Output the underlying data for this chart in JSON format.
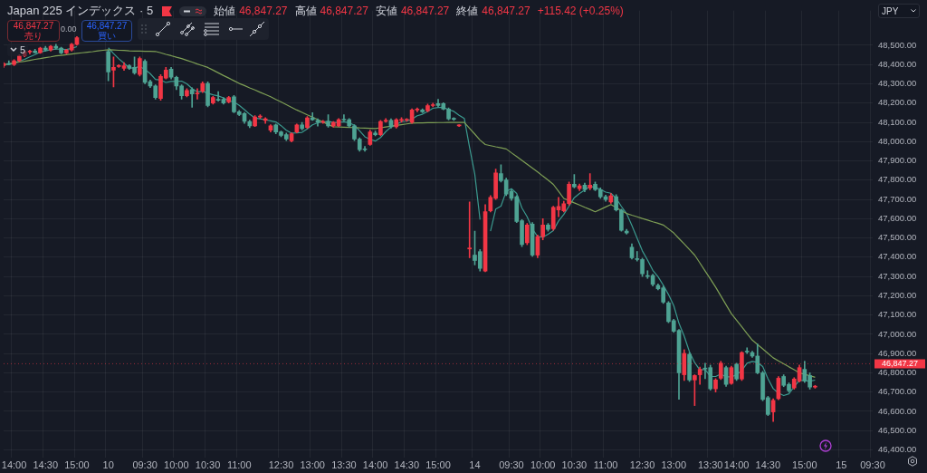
{
  "chart_data": {
    "type": "candlestick",
    "title": "Japan 225 インデックス · 5",
    "categories": [
      null,
      null,
      "14:00",
      null,
      null,
      null,
      null,
      null,
      "14:30",
      null,
      null,
      null,
      null,
      null,
      "15:00",
      null,
      null,
      null,
      null,
      null,
      "10",
      null,
      null,
      null,
      null,
      null,
      null,
      "09:30",
      null,
      null,
      null,
      null,
      null,
      "10:00",
      null,
      null,
      null,
      null,
      null,
      "10:30",
      null,
      null,
      null,
      null,
      null,
      "11:00",
      null,
      null,
      null,
      null,
      null,
      null,
      null,
      "12:30",
      null,
      null,
      null,
      null,
      null,
      "13:00",
      null,
      null,
      null,
      null,
      null,
      "13:30",
      null,
      null,
      null,
      null,
      null,
      "14:00",
      null,
      null,
      null,
      null,
      null,
      "14:30",
      null,
      null,
      null,
      null,
      null,
      "15:00",
      null,
      null,
      null,
      null,
      null,
      null,
      "14",
      null,
      null,
      null,
      null,
      null,
      null,
      "09:30",
      null,
      null,
      null,
      null,
      null,
      "10:00",
      null,
      null,
      null,
      null,
      null,
      "10:30",
      null,
      null,
      null,
      null,
      null,
      "11:00",
      null,
      null,
      null,
      null,
      null,
      null,
      "12:30",
      null,
      null,
      null,
      null,
      null,
      "13:00",
      null,
      null,
      null,
      null,
      null,
      null,
      "13:30",
      null,
      null,
      null,
      null,
      "14:00",
      null,
      null,
      null,
      null,
      null,
      "14:30",
      null,
      null,
      null,
      null,
      null,
      null,
      "15:00",
      null,
      null,
      null,
      null,
      null,
      null,
      "15",
      null,
      null,
      null,
      null,
      null,
      "09:30"
    ],
    "ohlc": [
      [
        48395,
        48410,
        48385,
        48405
      ],
      [
        48405,
        48420,
        48398,
        48400
      ],
      [
        48400,
        48425,
        48395,
        48420
      ],
      [
        48420,
        48450,
        48415,
        48445
      ],
      [
        48445,
        48470,
        48440,
        48465
      ],
      [
        48465,
        48475,
        48455,
        48470
      ],
      [
        48470,
        48480,
        48460,
        48462
      ],
      [
        48462,
        48490,
        48458,
        48485
      ],
      [
        48485,
        48495,
        48470,
        48475
      ],
      [
        48475,
        48500,
        48470,
        48495
      ],
      [
        48495,
        48505,
        48480,
        48485
      ],
      [
        48485,
        48490,
        48455,
        48460
      ],
      [
        48460,
        48480,
        48455,
        48475
      ],
      [
        48475,
        48510,
        48470,
        48505
      ],
      [
        48505,
        48545,
        48500,
        48540
      ],
      null,
      null,
      null,
      null,
      null,
      [
        48468,
        48475,
        48316,
        48362
      ],
      [
        48371,
        48440,
        48284,
        48385
      ],
      [
        48390,
        48400,
        48385,
        48394
      ],
      [
        48380,
        48410,
        48370,
        48394
      ],
      [
        48394,
        48400,
        48375,
        48380
      ],
      [
        48385,
        48440,
        48350,
        48357
      ],
      [
        48348,
        48440,
        48340,
        48431
      ],
      [
        48417,
        48425,
        48300,
        48307
      ],
      [
        48311,
        48320,
        48280,
        48289
      ],
      [
        48289,
        48295,
        48220,
        48229
      ],
      [
        48224,
        48348,
        48215,
        48339
      ],
      [
        48330,
        48385,
        48325,
        48371
      ],
      [
        48376,
        48385,
        48325,
        48334
      ],
      [
        48334,
        48340,
        48270,
        48289
      ],
      [
        48289,
        48295,
        48220,
        48238
      ],
      [
        48238,
        48275,
        48232,
        48266
      ],
      [
        48270,
        48280,
        48178,
        48247
      ],
      [
        48247,
        48275,
        48220,
        48252
      ],
      [
        48261,
        48310,
        48255,
        48302
      ],
      [
        48302,
        48310,
        48180,
        48187
      ],
      [
        48201,
        48235,
        48195,
        48229
      ],
      [
        48220,
        48260,
        48210,
        48215
      ],
      [
        48220,
        48228,
        48195,
        48201
      ],
      [
        48206,
        48235,
        48200,
        48229
      ],
      [
        48233,
        48240,
        48150,
        48155
      ],
      [
        48155,
        48162,
        48135,
        48141
      ],
      [
        48146,
        48152,
        48095,
        48105
      ],
      [
        48105,
        48112,
        48072,
        48082
      ],
      [
        48082,
        48135,
        48078,
        48128
      ],
      [
        48128,
        48140,
        48120,
        48132
      ],
      [
        48110,
        48125,
        48095,
        48118
      ],
      [
        48059,
        48088,
        48050,
        48082
      ],
      [
        48087,
        48092,
        48040,
        48050
      ],
      [
        48050,
        48055,
        48025,
        48032
      ],
      [
        48036,
        48045,
        48005,
        48013
      ],
      [
        48004,
        48046,
        47998,
        48041
      ],
      [
        48050,
        48092,
        48045,
        48087
      ],
      [
        48087,
        48100,
        48060,
        48068
      ],
      [
        48073,
        48130,
        48068,
        48123
      ],
      [
        48123,
        48150,
        48110,
        48114
      ],
      [
        48110,
        48118,
        48080,
        48100
      ],
      [
        48100,
        48110,
        48095,
        48105
      ],
      [
        48105,
        48140,
        48075,
        48082
      ],
      [
        48082,
        48105,
        48075,
        48100
      ],
      [
        48082,
        48120,
        48078,
        48114
      ],
      [
        48114,
        48140,
        48108,
        48112
      ],
      [
        48114,
        48120,
        48075,
        48082
      ],
      [
        48082,
        48088,
        48005,
        48013
      ],
      [
        48013,
        48020,
        47950,
        47958
      ],
      [
        47960,
        47975,
        47950,
        47958
      ],
      [
        47985,
        48060,
        47980,
        48050
      ],
      [
        48045,
        48055,
        48030,
        48036
      ],
      [
        48036,
        48110,
        48030,
        48105
      ],
      [
        48105,
        48120,
        48100,
        48110
      ],
      [
        48110,
        48118,
        48070,
        48077
      ],
      [
        48077,
        48120,
        48070,
        48114
      ],
      [
        48110,
        48125,
        48100,
        48112
      ],
      [
        48112,
        48120,
        48105,
        48115
      ],
      [
        48100,
        48170,
        48095,
        48164
      ],
      [
        48164,
        48175,
        48155,
        48166
      ],
      [
        48164,
        48170,
        48150,
        48155
      ],
      [
        48160,
        48195,
        48155,
        48187
      ],
      [
        48187,
        48200,
        48180,
        48192
      ],
      [
        48197,
        48220,
        48180,
        48187
      ],
      [
        48197,
        48202,
        48165,
        48169
      ],
      [
        48169,
        48175,
        48112,
        48118
      ],
      [
        48118,
        48125,
        48110,
        48116
      ],
      [
        48082,
        48088,
        48078,
        48085
      ],
      null,
      [
        47443,
        47687,
        47397,
        47448
      ],
      [
        47411,
        47535,
        47360,
        47383
      ],
      [
        47429,
        47440,
        47328,
        47342
      ],
      [
        47328,
        47673,
        47325,
        47636
      ],
      [
        47641,
        47720,
        47635,
        47710
      ],
      [
        47705,
        47857,
        47700,
        47838
      ],
      [
        47834,
        47880,
        47790,
        47797
      ],
      [
        47801,
        47810,
        47720,
        47728
      ],
      [
        47742,
        47750,
        47695,
        47705
      ],
      [
        47714,
        47720,
        47580,
        47586
      ],
      [
        47590,
        47595,
        47455,
        47466
      ],
      [
        47475,
        47575,
        47465,
        47567
      ],
      [
        47572,
        47580,
        47405,
        47411
      ],
      [
        47411,
        47515,
        47397,
        47507
      ],
      [
        47507,
        47600,
        47490,
        47567
      ],
      [
        47567,
        47575,
        47535,
        47544
      ],
      [
        47548,
        47665,
        47540,
        47659
      ],
      [
        47645,
        47710,
        47610,
        47664
      ],
      [
        47641,
        47690,
        47635,
        47678
      ],
      [
        47678,
        47790,
        47670,
        47779
      ],
      [
        47779,
        47829,
        47760,
        47765
      ],
      [
        47756,
        47780,
        47745,
        47770
      ],
      [
        47774,
        47785,
        47740,
        47751
      ],
      [
        47760,
        47834,
        47750,
        47774
      ],
      [
        47779,
        47790,
        47745,
        47751
      ],
      [
        47751,
        47760,
        47705,
        47714
      ],
      [
        47714,
        47722,
        47690,
        47700
      ],
      [
        47687,
        47730,
        47680,
        47719
      ],
      [
        47714,
        47725,
        47640,
        47645
      ],
      [
        47645,
        47650,
        47535,
        47540
      ],
      [
        47535,
        47545,
        47520,
        47526
      ],
      [
        47452,
        47470,
        47390,
        47397
      ],
      [
        47390,
        47430,
        47380,
        47388
      ],
      [
        47388,
        47395,
        47300,
        47314
      ],
      [
        47302,
        47330,
        47290,
        47300
      ],
      [
        47305,
        47312,
        47250,
        47259
      ],
      [
        47254,
        47262,
        47230,
        47236
      ],
      [
        47241,
        47250,
        47160,
        47167
      ],
      [
        47163,
        47170,
        47060,
        47066
      ],
      [
        47071,
        47078,
        47010,
        47016
      ],
      [
        47020,
        47025,
        46662,
        46800
      ],
      [
        46790,
        46920,
        46760,
        46901
      ],
      [
        46896,
        46905,
        46755,
        46763
      ],
      [
        46763,
        46790,
        46630,
        46786
      ],
      [
        46790,
        46830,
        46740,
        46818
      ],
      [
        46823,
        46850,
        46770,
        46820
      ],
      [
        46827,
        46840,
        46710,
        46717
      ],
      [
        46717,
        46770,
        46700,
        46763
      ],
      [
        46772,
        46860,
        46765,
        46850
      ],
      [
        46827,
        46835,
        46730,
        46740
      ],
      [
        46745,
        46835,
        46740,
        46827
      ],
      [
        46845,
        46850,
        46760,
        46768
      ],
      [
        46768,
        46910,
        46760,
        46905
      ],
      [
        46910,
        46930,
        46900,
        46908
      ],
      [
        46905,
        46912,
        46880,
        46887
      ],
      [
        46887,
        46950,
        46795,
        46800
      ],
      [
        46800,
        46808,
        46655,
        46662
      ],
      [
        46671,
        46678,
        46578,
        46584
      ],
      [
        46597,
        46665,
        46547,
        46657
      ],
      [
        46666,
        46780,
        46660,
        46772
      ],
      [
        46781,
        46790,
        46728,
        46735
      ],
      [
        46740,
        46748,
        46700,
        46708
      ],
      [
        46722,
        46775,
        46715,
        46768
      ],
      [
        46758,
        46840,
        46752,
        46827
      ],
      [
        46818,
        46860,
        46750,
        46758
      ],
      [
        46786,
        46800,
        46715,
        46726
      ],
      [
        46726,
        46735,
        46720,
        46730
      ],
      null,
      null,
      null,
      null,
      null,
      null,
      null,
      null,
      null,
      null,
      null
    ],
    "colors": [
      "#f23645",
      "#4ea393",
      "#f23645",
      "#f23645",
      "#f23645",
      "#f23645",
      "#4ea393",
      "#f23645",
      "#4ea393",
      "#f23645",
      "#4ea393",
      "#4ea393",
      "#f23645",
      "#f23645",
      "#f23645",
      null,
      null,
      null,
      null,
      null,
      "#4ea393",
      "#f23645",
      "#f23645",
      "#f23645",
      "#4ea393",
      "#4ea393",
      "#f23645",
      "#4ea393",
      "#4ea393",
      "#4ea393",
      "#f23645",
      "#f23645",
      "#4ea393",
      "#4ea393",
      "#4ea393",
      "#f23645",
      "#4ea393",
      "#f23645",
      "#f23645",
      "#4ea393",
      "#f23645",
      "#4ea393",
      "#4ea393",
      "#f23645",
      "#4ea393",
      "#4ea393",
      "#4ea393",
      "#4ea393",
      "#f23645",
      "#f23645",
      "#f23645",
      "#f23645",
      "#4ea393",
      "#4ea393",
      "#4ea393",
      "#f23645",
      "#f23645",
      "#4ea393",
      "#f23645",
      "#4ea393",
      "#4ea393",
      "#f23645",
      "#4ea393",
      "#f23645",
      "#f23645",
      "#4ea393",
      "#4ea393",
      "#4ea393",
      "#4ea393",
      "#4ea393",
      "#f23645",
      "#4ea393",
      "#f23645",
      "#f23645",
      "#4ea393",
      "#f23645",
      "#f23645",
      "#f23645",
      "#f23645",
      "#f23645",
      "#4ea393",
      "#f23645",
      "#f23645",
      "#4ea393",
      "#4ea393",
      "#4ea393",
      "#4ea393",
      "#f23645",
      null,
      "#f23645",
      "#4ea393",
      "#4ea393",
      "#f23645",
      "#f23645",
      "#f23645",
      "#4ea393",
      "#4ea393",
      "#4ea393",
      "#4ea393",
      "#4ea393",
      "#f23645",
      "#4ea393",
      "#f23645",
      "#f23645",
      "#4ea393",
      "#f23645",
      "#f23645",
      "#f23645",
      "#f23645",
      "#4ea393",
      "#f23645",
      "#4ea393",
      "#f23645",
      "#4ea393",
      "#4ea393",
      "#4ea393",
      "#f23645",
      "#4ea393",
      "#4ea393",
      "#4ea393",
      "#4ea393",
      "#4ea393",
      "#4ea393",
      "#4ea393",
      "#4ea393",
      "#4ea393",
      "#4ea393",
      "#4ea393",
      "#4ea393",
      "#4ea393",
      "#f23645",
      "#4ea393",
      "#f23645",
      "#f23645",
      "#4ea393",
      "#4ea393",
      "#f23645",
      "#f23645",
      "#4ea393",
      "#f23645",
      "#4ea393",
      "#f23645",
      "#4ea393",
      "#4ea393",
      "#4ea393",
      "#4ea393",
      "#4ea393",
      "#f23645",
      "#f23645",
      "#4ea393",
      "#4ea393",
      "#f23645",
      "#f23645",
      "#4ea393",
      "#4ea393",
      "#f23645",
      null,
      null,
      null,
      null,
      null,
      null,
      null,
      null,
      null,
      null,
      null
    ],
    "series": [
      {
        "type": "line",
        "color": "#7e9f55",
        "values": [
          48399,
          48404,
          48408,
          48413,
          48417,
          48422,
          48427,
          48431,
          48436,
          48440,
          48445,
          48448,
          48451,
          48455,
          48458,
          48461,
          48464,
          48467,
          48471,
          48474,
          48477,
          48476,
          48474,
          48473,
          48471,
          48470,
          48470,
          48469,
          48469,
          48468,
          48461,
          48453,
          48446,
          48438,
          48431,
          48422,
          48413,
          48403,
          48394,
          48385,
          48371,
          48357,
          48343,
          48330,
          48316,
          48302,
          48291,
          48279,
          48268,
          48256,
          48245,
          48233,
          48219,
          48206,
          48192,
          48178,
          48164,
          48152,
          48139,
          48127,
          48114,
          48102,
          48089,
          48077,
          48076,
          48075,
          48074,
          48073,
          48071,
          48070,
          48069,
          48068,
          48072,
          48076,
          48080,
          48084,
          48088,
          48092,
          48096,
          48097,
          48097,
          48098,
          48098,
          48099,
          48099,
          48100,
          48100,
          48100,
          48100,
          48069,
          48039,
          48008,
          47985,
          47979,
          47973,
          47968,
          47962,
          47942,
          47923,
          47903,
          47883,
          47863,
          47843,
          47821,
          47800,
          47778,
          47742,
          47705,
          47694,
          47682,
          47671,
          47659,
          47648,
          47636,
          47648,
          47661,
          47673,
          47658,
          47642,
          47627,
          47618,
          47610,
          47601,
          47593,
          47584,
          47576,
          47567,
          47547,
          47526,
          47497,
          47469,
          47440,
          47411,
          47370,
          47328,
          47287,
          47245,
          47199,
          47153,
          47107,
          47073,
          47039,
          47004,
          46970,
          46947,
          46924,
          46901,
          46878,
          46862,
          46847,
          46831,
          46816,
          46800,
          46792,
          46785,
          46777,
          null,
          null,
          null,
          null,
          null,
          null,
          null,
          null,
          null,
          null,
          null
        ]
      },
      {
        "type": "line",
        "color": "#3b9a8f",
        "values": [
          48400,
          48402,
          48408,
          48418,
          48427,
          48440,
          48452,
          48465,
          48471,
          48477,
          48480,
          48480,
          48478,
          48484,
          48493,
          null,
          null,
          null,
          null,
          null,
          48487,
          48457,
          48430,
          48407,
          48383,
          48382,
          48391,
          48374,
          48353,
          48323,
          48319,
          48307,
          48312,
          48312,
          48314,
          48300,
          48275,
          48258,
          48261,
          48251,
          48243,
          48237,
          48227,
          48212,
          48206,
          48188,
          48166,
          48142,
          48122,
          48118,
          48113,
          48108,
          48102,
          48083,
          48059,
          48044,
          48045,
          48048,
          48066,
          48087,
          48098,
          48102,
          48105,
          48100,
          48100,
          48103,
          48098,
          48085,
          48056,
          48025,
          48012,
          48003,
          48021,
          48052,
          48076,
          48088,
          48104,
          48106,
          48116,
          48134,
          48142,
          48157,
          48173,
          48177,
          48178,
          48166,
          48157,
          48137,
          48120,
          47970,
          47830,
          47595,
          null,
          47535,
          47650,
          47665,
          47742,
          47756,
          47731,
          47656,
          47610,
          47547,
          47507,
          47504,
          47519,
          47538,
          47588,
          47622,
          47665,
          47709,
          47731,
          47749,
          47768,
          47762,
          47752,
          47738,
          47732,
          47706,
          47664,
          47626,
          47565,
          47499,
          47433,
          47385,
          47332,
          47299,
          47255,
          47206,
          47149,
          47057,
          46990,
          46909,
          46853,
          46814,
          46818,
          46781,
          46781,
          46794,
          46779,
          46779,
          46790,
          46812,
          46850,
          46859,
          46854,
          46833,
          46769,
          46718,
          46695,
          46682,
          46691,
          46728,
          46762,
          46759,
          46757,
          46762,
          null,
          null,
          null,
          null,
          null,
          null,
          null,
          null,
          null,
          null,
          null
        ]
      }
    ],
    "ylim": [
      46360,
      48680
    ],
    "yticks": [
      {
        "value": 46400,
        "label": "46,400.00"
      },
      {
        "value": 46500,
        "label": "46,500.00"
      },
      {
        "value": 46600,
        "label": "46,600.00"
      },
      {
        "value": 46700,
        "label": "46,700.00"
      },
      {
        "value": 46800,
        "label": "46,800.00"
      },
      {
        "value": 46900,
        "label": "46,900.00"
      },
      {
        "value": 47000,
        "label": "47,000.00"
      },
      {
        "value": 47100,
        "label": "47,100.00"
      },
      {
        "value": 47200,
        "label": "47,200.00"
      },
      {
        "value": 47300,
        "label": "47,300.00"
      },
      {
        "value": 47400,
        "label": "47,400.00"
      },
      {
        "value": 47500,
        "label": "47,500.00"
      },
      {
        "value": 47600,
        "label": "47,600.00"
      },
      {
        "value": 47700,
        "label": "47,700.00"
      },
      {
        "value": 47800,
        "label": "47,800.00"
      },
      {
        "value": 47900,
        "label": "47,900.00"
      },
      {
        "value": 48000,
        "label": "48,000.00"
      },
      {
        "value": 48100,
        "label": "48,100.00"
      },
      {
        "value": 48200,
        "label": "48,200.00"
      },
      {
        "value": 48300,
        "label": "48,300.00"
      },
      {
        "value": 48400,
        "label": "48,400.00"
      },
      {
        "value": 48500,
        "label": "48,500.00"
      }
    ],
    "grid": true,
    "ref_lines": [
      {
        "axis": "y",
        "value": 46847.27,
        "label": "46,847.27",
        "color": "#f23645",
        "line_style": "dotted"
      }
    ],
    "annotations": [
      "始値",
      "46,847.27",
      "高値",
      "46,847.27",
      "安値",
      "46,847.27",
      "終値",
      "46,847.27",
      "+115.42 (+0.25%)",
      "46,847.27",
      "売り",
      "0.00",
      "46,847.27",
      "買い",
      "5",
      "JPY"
    ]
  }
}
